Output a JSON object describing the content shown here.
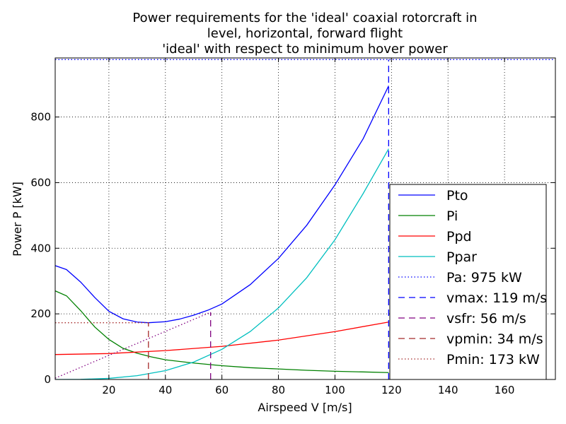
{
  "chart_data": {
    "type": "line",
    "title": [
      "Power requirements for the 'ideal' coaxial rotorcraft in",
      "level, horizontal, forward flight",
      "'ideal' with respect to minimum hover power"
    ],
    "xlabel": "Airspeed V [m/s]",
    "ylabel": "Power P [kW]",
    "xlim": [
      1,
      178
    ],
    "ylim": [
      0,
      980
    ],
    "xticks": [
      20,
      40,
      60,
      80,
      100,
      120,
      140,
      160
    ],
    "yticks": [
      0,
      200,
      400,
      600,
      800
    ],
    "grid": true,
    "legend_position": "lower-right",
    "series": [
      {
        "name": "Pto",
        "color": "#0000ff",
        "style": "solid",
        "x": [
          1,
          5,
          10,
          15,
          20,
          25,
          30,
          34,
          40,
          45,
          50,
          55,
          60,
          70,
          80,
          90,
          100,
          110,
          119
        ],
        "y": [
          347,
          335,
          297,
          250,
          208,
          185,
          175,
          173,
          176,
          184,
          196,
          211,
          230,
          289,
          369,
          470,
          593,
          734,
          895
        ]
      },
      {
        "name": "Pi",
        "color": "#008000",
        "style": "solid",
        "x": [
          1,
          5,
          10,
          15,
          20,
          25,
          30,
          35,
          40,
          50,
          60,
          70,
          80,
          90,
          100,
          110,
          119
        ],
        "y": [
          270,
          255,
          210,
          160,
          122,
          95,
          80,
          69,
          60,
          50,
          42,
          36,
          32,
          28,
          25,
          23,
          21
        ]
      },
      {
        "name": "Ppd",
        "color": "#ff0000",
        "style": "solid",
        "x": [
          1,
          20,
          40,
          60,
          80,
          100,
          119
        ],
        "y": [
          76,
          79,
          88,
          101,
          120,
          146,
          175
        ]
      },
      {
        "name": "Ppar",
        "color": "#00bfbf",
        "style": "solid",
        "x": [
          1,
          10,
          20,
          30,
          40,
          50,
          60,
          70,
          80,
          90,
          100,
          110,
          119
        ],
        "y": [
          0,
          0.4,
          3.4,
          11.5,
          27,
          53,
          92,
          146,
          218,
          310,
          426,
          567,
          703
        ]
      },
      {
        "name": "Pa: 975 kW",
        "color": "#0000ff",
        "style": "dotted",
        "x": [
          1,
          178
        ],
        "y": [
          975,
          975
        ]
      },
      {
        "name": "vmax: 119 m/s",
        "color": "#0000ff",
        "style": "dashed",
        "x": [
          119,
          119
        ],
        "y": [
          0,
          975
        ]
      },
      {
        "name": "vsfr: 56 m/s",
        "color": "#800080",
        "style": "dashed",
        "x": [
          56,
          56
        ],
        "y": [
          0,
          205
        ]
      },
      {
        "name": "vpmin: 34 m/s",
        "color": "#a52a2a",
        "style": "dashed",
        "x": [
          34,
          34
        ],
        "y": [
          0,
          173
        ]
      },
      {
        "name": "Pmin: 173 kW",
        "color": "#a52a2a",
        "style": "dotted",
        "x": [
          1,
          34
        ],
        "y": [
          173,
          173
        ]
      }
    ],
    "tangent_line": {
      "color": "#800080",
      "style": "dotted",
      "x": [
        1,
        56
      ],
      "y": [
        4,
        205
      ]
    }
  }
}
